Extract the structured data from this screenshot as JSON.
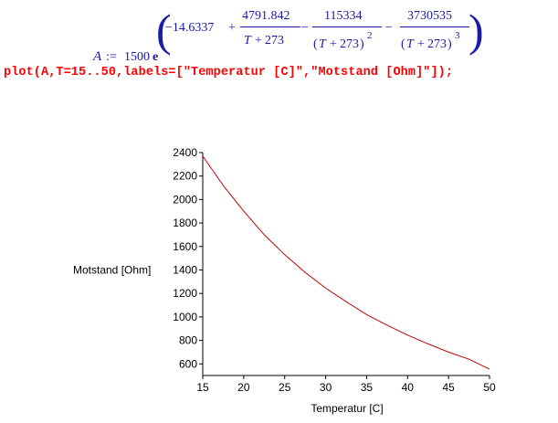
{
  "worksheet": {
    "output": {
      "lhs": "A",
      "assign": ":=",
      "coef": "1500",
      "base": "e",
      "term1": "−14.6337",
      "plus": "+",
      "minus": "−",
      "t2_num": "4791.842",
      "t3_num": "115334",
      "t4_num": "3730535",
      "den_var": "T",
      "den_plus": "+",
      "den_const": "273",
      "lparen": "(",
      "rparen": ")",
      "exp2": "2",
      "exp3": "3"
    },
    "command": "plot(A,T=15..50,labels=[\"Temperatur [C]\",\"Motstand [Ohm]\"]);"
  },
  "colors": {
    "math": "#1a1aa8",
    "command": "#ff0000",
    "curve": "#c00000",
    "axes": "#000000"
  },
  "chart_data": {
    "type": "line",
    "xlabel": "Temperatur [C]",
    "ylabel": "Motstand [Ohm]",
    "xlim": [
      15,
      50
    ],
    "ylim": [
      540,
      2400
    ],
    "x_ticks": [
      15,
      20,
      25,
      30,
      35,
      40,
      45,
      50
    ],
    "y_ticks": [
      600,
      800,
      1000,
      1200,
      1400,
      1600,
      1800,
      2000,
      2200,
      2400
    ],
    "grid": false,
    "series": [
      {
        "x": [
          15,
          17.5,
          20,
          22.5,
          25,
          27.5,
          30,
          32.5,
          35,
          37.5,
          40,
          42.5,
          45,
          47.5,
          50
        ],
        "y": [
          2370,
          2120,
          1900,
          1700,
          1530,
          1380,
          1245,
          1130,
          1020,
          930,
          845,
          770,
          700,
          640,
          555
        ]
      }
    ]
  }
}
